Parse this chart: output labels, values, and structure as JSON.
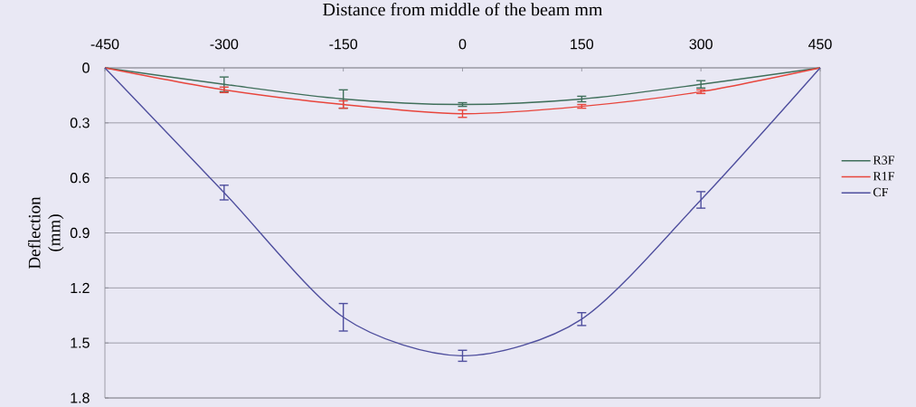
{
  "chart_data": {
    "type": "line",
    "xlabel": "Distance from middle of the beam mm",
    "ylabel": "Deflection (mm)",
    "x": [
      -450,
      -300,
      -150,
      0,
      150,
      300,
      450
    ],
    "series": [
      {
        "name": "R3F",
        "color": "#3f6f5a",
        "values": [
          0,
          0.09,
          0.17,
          0.2,
          0.17,
          0.09,
          0
        ],
        "errors": [
          null,
          0.04,
          0.05,
          0.01,
          0.015,
          0.02,
          null
        ]
      },
      {
        "name": "R1F",
        "color": "#e8453c",
        "values": [
          0,
          0.12,
          0.2,
          0.25,
          0.21,
          0.13,
          0
        ],
        "errors": [
          null,
          0.015,
          0.02,
          0.02,
          0.01,
          0.01,
          null
        ]
      },
      {
        "name": "CF",
        "color": "#4f4f9e",
        "values": [
          0,
          0.68,
          1.36,
          1.57,
          1.37,
          0.72,
          0
        ],
        "errors": [
          null,
          0.04,
          0.075,
          0.03,
          0.035,
          0.045,
          null
        ]
      }
    ],
    "xlim": [
      -450,
      450
    ],
    "xticks": [
      -450,
      -300,
      -150,
      0,
      150,
      300,
      450
    ],
    "ylim": [
      1.8,
      0
    ],
    "yticks": [
      0,
      0.3,
      0.6,
      0.9,
      1.2,
      1.5,
      1.8
    ],
    "grid": "y",
    "legend": "right"
  }
}
